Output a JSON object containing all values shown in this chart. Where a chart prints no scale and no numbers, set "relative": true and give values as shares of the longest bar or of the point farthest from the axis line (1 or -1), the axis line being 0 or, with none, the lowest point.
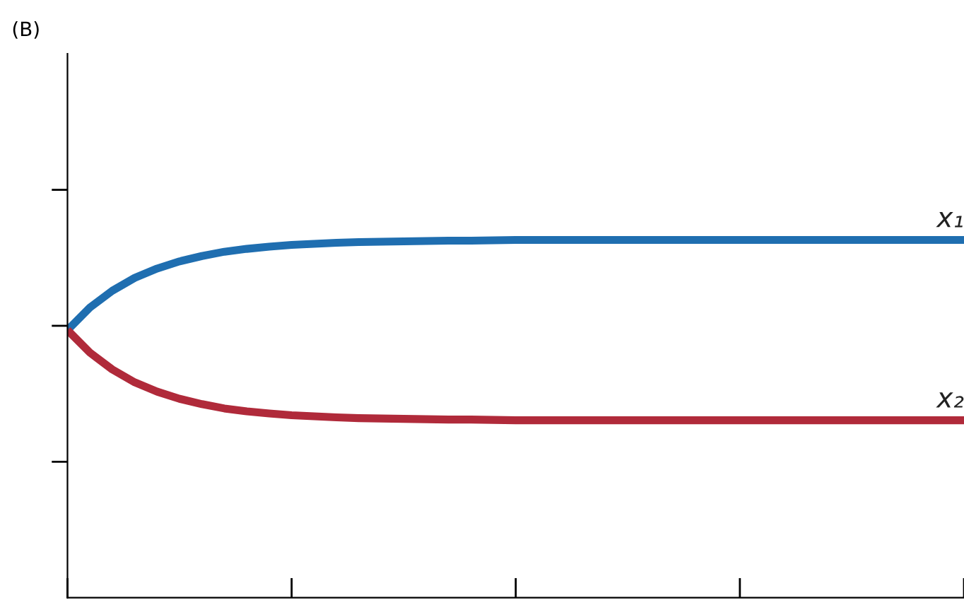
{
  "chart_data": {
    "type": "line",
    "title": "(B)",
    "relative": true,
    "categories": [
      null,
      null,
      null,
      null,
      null,
      null,
      null,
      null,
      null,
      null,
      null,
      null,
      null,
      null,
      null,
      null,
      null,
      null,
      null,
      null,
      null,
      null,
      null,
      null,
      null,
      null,
      null,
      null,
      null,
      null,
      null,
      null,
      null,
      null,
      null,
      null,
      null,
      null,
      null,
      null,
      null
    ],
    "series": [
      {
        "name": "x₁",
        "color": "#1f6eb0",
        "values": [
          0.748,
          0.811,
          0.858,
          0.894,
          0.92,
          0.94,
          0.955,
          0.967,
          0.975,
          0.981,
          0.986,
          0.989,
          0.992,
          0.994,
          0.995,
          0.996,
          0.997,
          0.998,
          0.998,
          0.999,
          1,
          1,
          1,
          1,
          1,
          1,
          1,
          1,
          1,
          1,
          1,
          1,
          1,
          1,
          1,
          1,
          1,
          1,
          1,
          1,
          1
        ]
      },
      {
        "name": "x₂",
        "color": "#b02a3a",
        "values": [
          0.748,
          0.685,
          0.638,
          0.602,
          0.576,
          0.556,
          0.541,
          0.529,
          0.521,
          0.515,
          0.51,
          0.507,
          0.504,
          0.502,
          0.501,
          0.5,
          0.499,
          0.498,
          0.498,
          0.497,
          0.496,
          0.496,
          0.496,
          0.496,
          0.496,
          0.496,
          0.496,
          0.496,
          0.496,
          0.496,
          0.496,
          0.496,
          0.496,
          0.496,
          0.496,
          0.496,
          0.496,
          0.496,
          0.496,
          0.496,
          0.496
        ]
      }
    ],
    "grid": false,
    "legend": false,
    "marker": "none",
    "line_style": "solid"
  }
}
